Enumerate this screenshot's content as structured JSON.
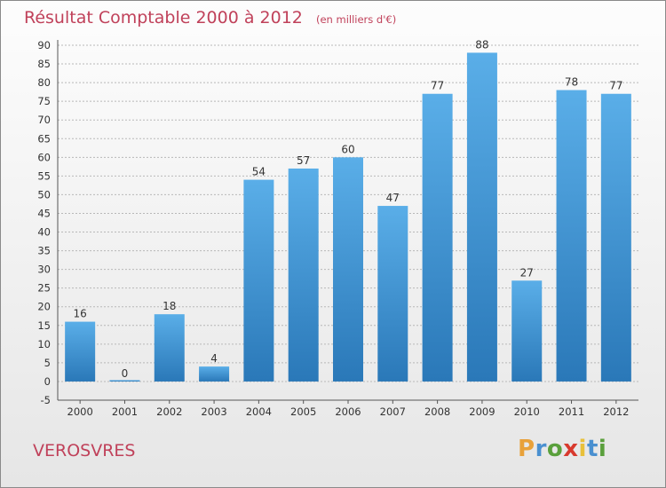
{
  "title": "Résultat Comptable 2000 à 2012",
  "unit_note": "(en milliers d'€)",
  "commune": "VEROSVRES",
  "logo": {
    "text": "Proxiti",
    "letter_colors": [
      "#e8a13a",
      "#4a90d0",
      "#5aa03c",
      "#d83a2e",
      "#e8c03a",
      "#4a90d0",
      "#5aa03c"
    ]
  },
  "colors": {
    "title": "#c0415a",
    "bar_top": "#5aaee8",
    "bar_bottom": "#2a78b8",
    "grid": "#b8b8b8",
    "axis_text": "#333333"
  },
  "chart_data": {
    "type": "bar",
    "title": "Résultat Comptable 2000 à 2012",
    "categories": [
      "2000",
      "2001",
      "2002",
      "2003",
      "2004",
      "2005",
      "2006",
      "2007",
      "2008",
      "2009",
      "2010",
      "2011",
      "2012"
    ],
    "values": [
      16,
      0,
      18,
      4,
      54,
      57,
      60,
      47,
      77,
      88,
      27,
      78,
      77
    ],
    "ylim": [
      -5,
      90
    ],
    "yticks": [
      -5,
      0,
      5,
      10,
      15,
      20,
      25,
      30,
      35,
      40,
      45,
      50,
      55,
      60,
      65,
      70,
      75,
      80,
      85,
      90
    ],
    "xlabel": "",
    "ylabel": "",
    "grid": true
  }
}
